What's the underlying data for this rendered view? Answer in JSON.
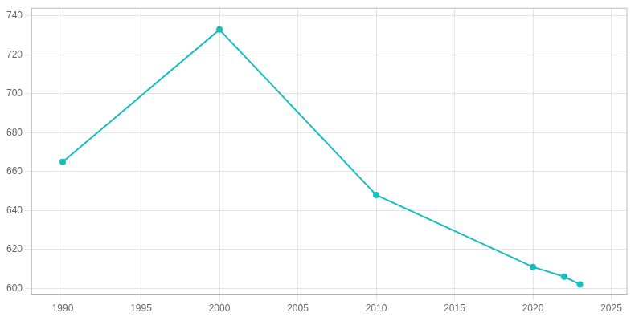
{
  "chart_data": {
    "type": "line",
    "x": [
      1990,
      2000,
      2010,
      2020,
      2022,
      2023
    ],
    "values": [
      665,
      733,
      648,
      611,
      606,
      602
    ],
    "color": "#17BEC0",
    "marker": "circle",
    "xlim": [
      1988,
      2026
    ],
    "ylim": [
      597,
      744
    ],
    "xticks": [
      1990,
      1995,
      2000,
      2005,
      2010,
      2015,
      2020,
      2025
    ],
    "yticks": [
      600,
      620,
      640,
      660,
      680,
      700,
      720,
      740
    ],
    "grid": true
  }
}
